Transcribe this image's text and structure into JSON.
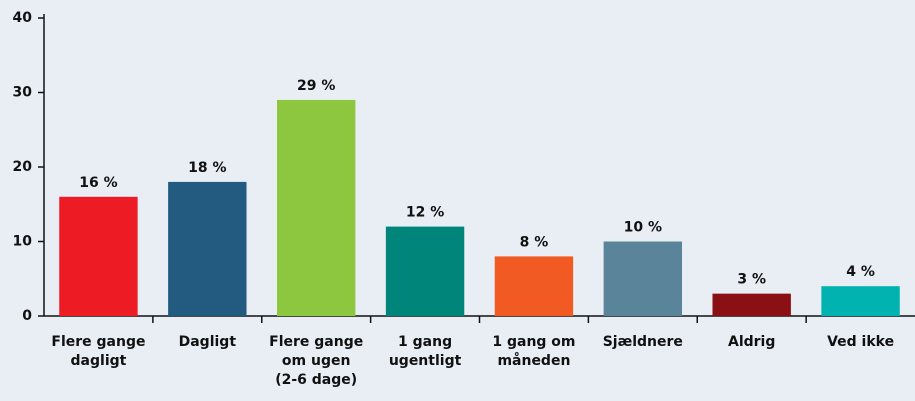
{
  "chart_data": {
    "type": "bar",
    "categories": [
      [
        "Flere gange",
        "dagligt"
      ],
      [
        "Dagligt"
      ],
      [
        "Flere gange",
        "om ugen",
        "(2-6 dage)"
      ],
      [
        "1 gang",
        "ugentligt"
      ],
      [
        "1 gang om",
        "måneden"
      ],
      [
        "Sjældnere"
      ],
      [
        "Aldrig"
      ],
      [
        "Ved ikke"
      ]
    ],
    "values": [
      16,
      18,
      29,
      12,
      8,
      10,
      3,
      4
    ],
    "value_labels": [
      "16 %",
      "18 %",
      "29 %",
      "12 %",
      "8 %",
      "10 %",
      "3 %",
      "4 %"
    ],
    "colors": [
      "#ed1c24",
      "#235a80",
      "#8dc63f",
      "#00857a",
      "#f15a22",
      "#5a8499",
      "#8b1015",
      "#00b3b0"
    ],
    "ylim": [
      0,
      40
    ],
    "yticks": [
      0,
      10,
      20,
      30,
      40
    ],
    "grid": false
  }
}
